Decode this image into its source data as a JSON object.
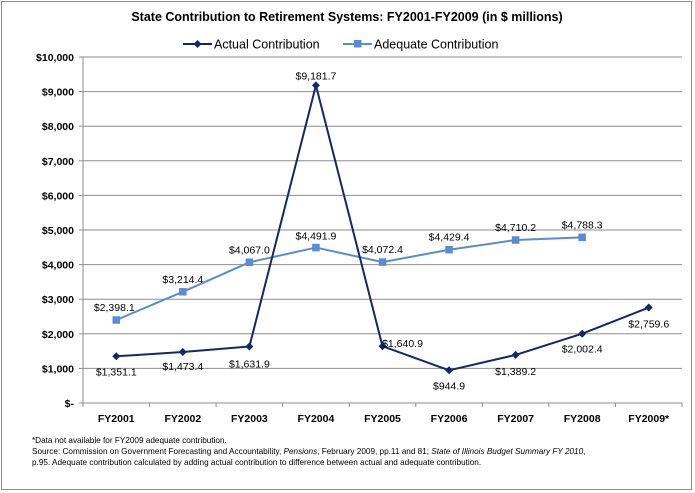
{
  "chart_data": {
    "type": "line",
    "title": "State Contribution to Retirement Systems: FY2001-FY2009 (in $ millions)",
    "categories": [
      "FY2001",
      "FY2002",
      "FY2003",
      "FY2004",
      "FY2005",
      "FY2006",
      "FY2007",
      "FY2008",
      "FY2009*"
    ],
    "ylim": [
      0,
      10000
    ],
    "y_ticks": [
      0,
      1000,
      2000,
      3000,
      4000,
      5000,
      6000,
      7000,
      8000,
      9000,
      10000
    ],
    "y_tick_labels": [
      "$-",
      "$1,000",
      "$2,000",
      "$3,000",
      "$4,000",
      "$5,000",
      "$6,000",
      "$7,000",
      "$8,000",
      "$9,000",
      "$10,000"
    ],
    "grid": true,
    "legend_position": "top",
    "series": [
      {
        "name": "Actual Contribution",
        "color": "#14276b",
        "marker": "diamond",
        "values": [
          1351.1,
          1473.4,
          1631.9,
          9181.7,
          1640.9,
          944.9,
          1389.2,
          2002.4,
          2759.6
        ],
        "labels": [
          "$1,351.1",
          "$1,473.4",
          "$1,631.9",
          "$9,181.7",
          "$1,640.9",
          "$944.9",
          "$1,389.2",
          "$2,002.4",
          "$2,759.6"
        ]
      },
      {
        "name": "Adequate Contribution",
        "color": "#5b8bd0",
        "marker": "square",
        "values": [
          2398.1,
          3214.4,
          4067.0,
          4491.9,
          4072.4,
          4429.4,
          4710.2,
          4788.3,
          null
        ],
        "labels": [
          "$2,398.1",
          "$3,214.4",
          "$4,067.0",
          "$4,491.9",
          "$4,072.4",
          "$4,429.4",
          "$4,710.2",
          "$4,788.3",
          null
        ]
      }
    ]
  },
  "footnotes": {
    "line1": "*Data not available for FY2009 adequate contribution.",
    "line2_a": "Source: Commission on Government Forecasting and Accountability, ",
    "line2_b": "Pensions",
    "line2_c": ", February 2009, pp.11 and 81; ",
    "line2_d": "State of Illinois Budget Summary FY 2010",
    "line2_e": ",",
    "line3": "p.95. Adequate contribution calculated by adding actual contribution to difference between actual and adequate contribution."
  }
}
